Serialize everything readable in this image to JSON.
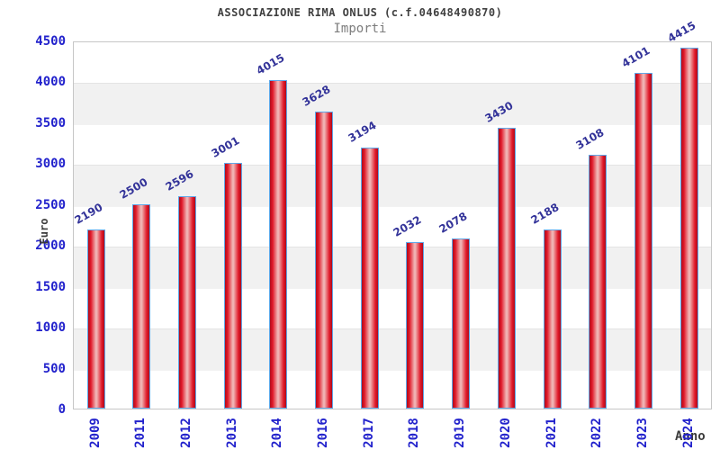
{
  "header": {
    "title": "ASSOCIAZIONE RIMA ONLUS (c.f.04648490870)",
    "subtitle": "Importi"
  },
  "chart_data": {
    "type": "bar",
    "title": "ASSOCIAZIONE RIMA ONLUS (c.f.04648490870)",
    "subtitle": "Importi",
    "xlabel": "Anno",
    "ylabel": "Euro",
    "categories": [
      "2009",
      "2011",
      "2012",
      "2013",
      "2014",
      "2016",
      "2017",
      "2018",
      "2019",
      "2020",
      "2021",
      "2022",
      "2023",
      "2024"
    ],
    "values": [
      2190,
      2500,
      2596,
      3001,
      4015,
      3628,
      3194,
      2032,
      2078,
      3430,
      2188,
      3108,
      4101,
      4415
    ],
    "ylim": [
      0,
      4500
    ],
    "yticks": [
      0,
      500,
      1000,
      1500,
      2000,
      2500,
      3000,
      3500,
      4000,
      4500
    ],
    "grid": "horizontal-bands-alternating",
    "legend": "none",
    "bar_fill_color": "#e01727",
    "bar_border_color": "#5ea7e8",
    "band_color": "#f1f1f1",
    "axis_tick_label_color": "#2222cc",
    "value_label_color": "#333399",
    "title_color": "#404040",
    "subtitle_color": "#7d7d7d"
  }
}
